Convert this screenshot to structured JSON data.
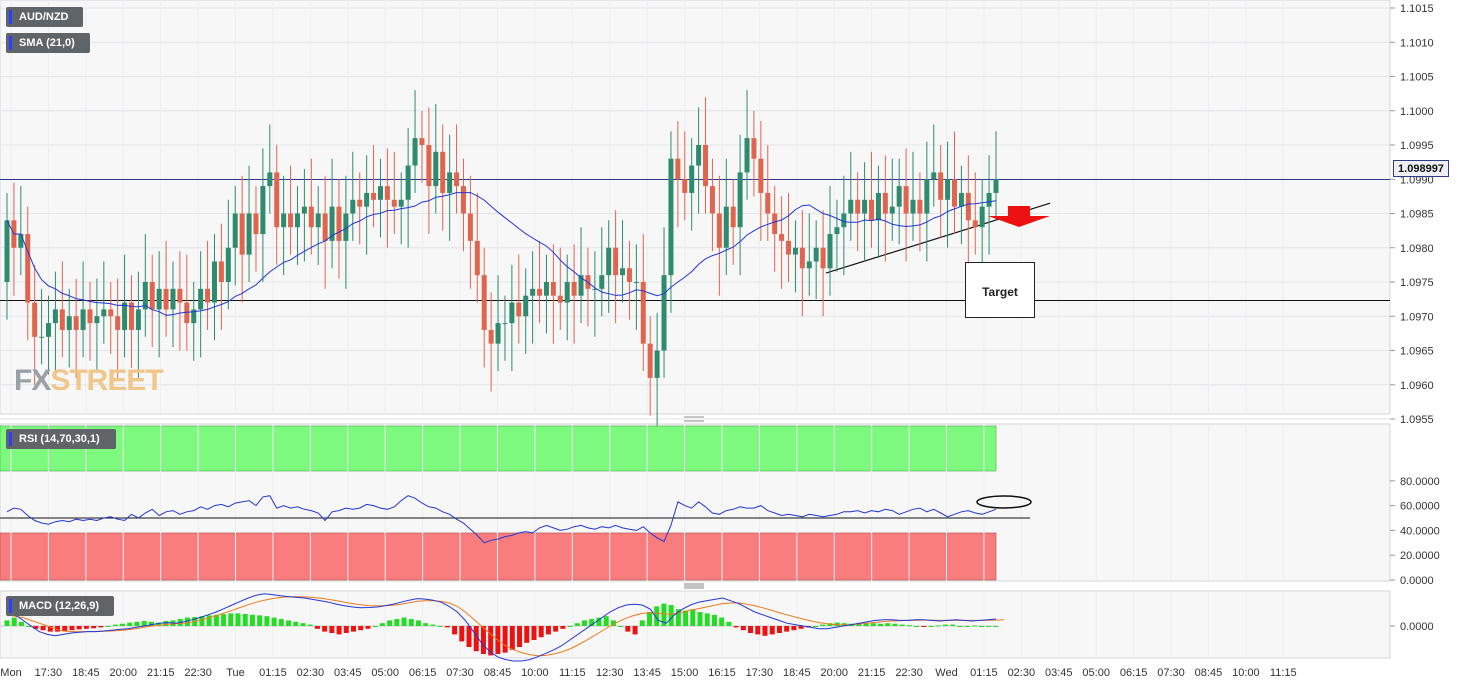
{
  "labels": {
    "symbol": "AUD/NZD",
    "sma": "SMA (21,0)",
    "rsi": "RSI (14,70,30,1)",
    "macd": "MACD (12,26,9)",
    "target": "Target",
    "last_price": "1.098997",
    "watermark_a": "FX",
    "watermark_b": "STREET"
  },
  "x_axis": {
    "ticks": [
      "Mon",
      "17:30",
      "18:45",
      "20:00",
      "21:15",
      "22:30",
      "Tue",
      "01:15",
      "02:30",
      "03:45",
      "05:00",
      "06:15",
      "07:30",
      "08:45",
      "10:00",
      "11:15",
      "12:30",
      "13:45",
      "15:00",
      "16:15",
      "17:30",
      "18:45",
      "20:00",
      "21:15",
      "22:30",
      "Wed",
      "01:15",
      "02:30",
      "03:45",
      "05:00",
      "06:15",
      "07:30",
      "08:45",
      "10:00",
      "11:15"
    ]
  },
  "chart_data": {
    "type": "candlestick",
    "price_axis": {
      "ticks": [
        "1.1015",
        "1.1010",
        "1.1005",
        "1.1000",
        "1.0995",
        "1.0990",
        "1.0985",
        "1.0980",
        "1.0975",
        "1.0970",
        "1.0965",
        "1.0960",
        "1.0955"
      ],
      "ylim": [
        1.095,
        1.1016
      ]
    },
    "last_price": 1.098997,
    "support_level": 1.09723,
    "trendline": {
      "from": 1.09763,
      "to": 1.09865
    },
    "candles": {
      "open": [
        1.0975,
        1.0984,
        1.098,
        1.0982,
        1.0972,
        1.0967,
        1.0967,
        1.0969,
        1.0971,
        1.0968,
        1.097,
        1.0968,
        1.0971,
        1.0969,
        1.097,
        1.0971,
        1.097,
        1.0968,
        1.0972,
        1.0968,
        1.0971,
        1.0975,
        1.0971,
        1.0974,
        1.0971,
        1.0974,
        1.0972,
        1.0969,
        1.0971,
        1.0974,
        1.0972,
        1.0978,
        1.0975,
        1.098,
        1.0985,
        1.0979,
        1.0985,
        1.0982,
        1.0989,
        1.0991,
        1.0983,
        1.0985,
        1.0983,
        1.0985,
        1.0986,
        1.0983,
        1.0985,
        1.0981,
        1.0986,
        1.0981,
        1.0985,
        1.0987,
        1.0986,
        1.0988,
        1.0987,
        1.0989,
        1.0987,
        1.0986,
        1.0987,
        1.0992,
        1.0996,
        1.0995,
        1.0989,
        1.0994,
        1.0988,
        1.0991,
        1.0989,
        1.0985,
        1.0981,
        1.0976,
        1.0968,
        1.0966,
        1.0969,
        1.0969,
        1.0972,
        1.097,
        1.0973,
        1.0974,
        1.0973,
        1.0975,
        1.0973,
        1.0972,
        1.0975,
        1.0973,
        1.0976,
        1.0974,
        1.0974,
        1.0976,
        1.098,
        1.0976,
        1.0977,
        1.0975,
        1.0975,
        1.0966,
        1.0961,
        1.0965,
        1.0976,
        1.0993,
        1.099,
        1.0988,
        1.0992,
        1.0995,
        1.0989,
        1.0985,
        1.098,
        1.0986,
        1.0983,
        1.0991,
        1.0996,
        1.0993,
        1.0988,
        1.0985,
        1.0982,
        1.0981,
        1.0979,
        1.098,
        1.0977,
        1.0978,
        1.098,
        1.0977,
        1.0982,
        1.0983,
        1.0985,
        1.0987,
        1.0985,
        1.0987,
        1.0984,
        1.0988,
        1.0985,
        1.0986,
        1.0989,
        1.0985,
        1.0987,
        1.0985,
        1.099,
        1.0991,
        1.0987,
        1.099,
        1.0986,
        1.0988,
        1.0984,
        1.0983,
        1.0986,
        1.0988
      ],
      "close": [
        1.0984,
        1.098,
        1.0982,
        1.0972,
        1.0967,
        1.0967,
        1.0969,
        1.0971,
        1.0968,
        1.097,
        1.0968,
        1.0971,
        1.0969,
        1.097,
        1.0971,
        1.097,
        1.0968,
        1.0972,
        1.0968,
        1.0971,
        1.0975,
        1.0971,
        1.0974,
        1.0971,
        1.0974,
        1.0972,
        1.0969,
        1.0971,
        1.0974,
        1.0972,
        1.0978,
        1.0975,
        1.098,
        1.0985,
        1.0979,
        1.0985,
        1.0982,
        1.0989,
        1.0991,
        1.0983,
        1.0985,
        1.0983,
        1.0985,
        1.0986,
        1.0983,
        1.0985,
        1.0981,
        1.0986,
        1.0981,
        1.0985,
        1.0987,
        1.0986,
        1.0988,
        1.0987,
        1.0989,
        1.0987,
        1.0986,
        1.0987,
        1.0992,
        1.0996,
        1.0995,
        1.0989,
        1.0994,
        1.0988,
        1.0991,
        1.0989,
        1.0985,
        1.0981,
        1.0976,
        1.0968,
        1.0966,
        1.0969,
        1.0969,
        1.0972,
        1.097,
        1.0973,
        1.0974,
        1.0973,
        1.0975,
        1.0973,
        1.0972,
        1.0975,
        1.0973,
        1.0976,
        1.0974,
        1.0974,
        1.0976,
        1.098,
        1.0976,
        1.0977,
        1.0975,
        1.0975,
        1.0966,
        1.0961,
        1.0965,
        1.0976,
        1.0993,
        1.099,
        1.0988,
        1.0992,
        1.0995,
        1.0989,
        1.0985,
        1.098,
        1.0986,
        1.0983,
        1.0991,
        1.0996,
        1.0993,
        1.0988,
        1.0985,
        1.0982,
        1.0981,
        1.0979,
        1.098,
        1.0977,
        1.0978,
        1.098,
        1.0977,
        1.0982,
        1.0983,
        1.0985,
        1.0987,
        1.0985,
        1.0987,
        1.0984,
        1.0988,
        1.0985,
        1.0986,
        1.0989,
        1.0985,
        1.0987,
        1.0985,
        1.099,
        1.0991,
        1.0987,
        1.099,
        1.0986,
        1.0988,
        1.0984,
        1.0983,
        1.0986,
        1.0988,
        1.099
      ]
    },
    "rsi": {
      "ticks": [
        "80.0000",
        "60.0000",
        "40.0000",
        "20.0000",
        "0.0000"
      ],
      "overbought": 70,
      "oversold": 30,
      "mid": 50,
      "values": [
        55,
        58,
        57,
        52,
        48,
        46,
        45,
        47,
        48,
        47,
        49,
        48,
        49,
        48,
        50,
        51,
        49,
        48,
        53,
        50,
        54,
        57,
        52,
        55,
        56,
        53,
        55,
        56,
        59,
        57,
        60,
        61,
        59,
        62,
        63,
        64,
        60,
        67,
        68,
        58,
        60,
        58,
        59,
        57,
        56,
        54,
        48,
        55,
        56,
        58,
        57,
        58,
        61,
        60,
        58,
        57,
        59,
        64,
        68,
        66,
        62,
        59,
        58,
        55,
        53,
        49,
        46,
        41,
        36,
        30,
        32,
        33,
        35,
        36,
        38,
        39,
        38,
        42,
        44,
        42,
        40,
        41,
        43,
        44,
        42,
        41,
        43,
        42,
        44,
        42,
        41,
        40,
        43,
        38,
        34,
        31,
        44,
        63,
        60,
        58,
        63,
        59,
        54,
        53,
        56,
        57,
        59,
        58,
        58,
        60,
        56,
        54,
        52,
        53,
        52,
        51,
        53,
        52,
        51,
        52,
        53,
        55,
        55,
        56,
        54,
        56,
        55,
        57,
        56,
        53,
        55,
        57,
        58,
        55,
        57,
        54,
        51,
        53,
        55,
        56,
        54,
        53,
        55,
        57
      ]
    },
    "macd": {
      "zero": "0.0000",
      "hist": [
        0.2,
        0.3,
        0.15,
        0.0,
        -0.1,
        -0.15,
        -0.2,
        -0.2,
        -0.18,
        -0.15,
        -0.12,
        -0.1,
        -0.08,
        -0.05,
        0.0,
        0.05,
        0.08,
        0.12,
        0.15,
        0.18,
        0.15,
        0.12,
        0.18,
        0.2,
        0.25,
        0.3,
        0.32,
        0.35,
        0.38,
        0.4,
        0.42,
        0.45,
        0.45,
        0.43,
        0.4,
        0.38,
        0.35,
        0.3,
        0.25,
        0.2,
        0.15,
        0.1,
        0.05,
        -0.1,
        -0.2,
        -0.25,
        -0.3,
        -0.25,
        -0.2,
        -0.15,
        -0.1,
        0.0,
        0.1,
        0.2,
        0.25,
        0.3,
        0.25,
        0.2,
        0.1,
        0.05,
        0.0,
        -0.05,
        -0.3,
        -0.55,
        -0.75,
        -0.9,
        -1.0,
        -1.05,
        -1.0,
        -0.95,
        -0.85,
        -0.75,
        -0.6,
        -0.5,
        -0.4,
        -0.3,
        -0.2,
        -0.1,
        0.0,
        0.1,
        0.2,
        0.25,
        0.3,
        0.35,
        0.2,
        0.0,
        -0.2,
        -0.3,
        0.2,
        0.5,
        0.7,
        0.8,
        0.75,
        0.6,
        0.55,
        0.6,
        0.5,
        0.45,
        0.4,
        0.3,
        0.15,
        -0.05,
        -0.15,
        -0.25,
        -0.3,
        -0.35,
        -0.3,
        -0.25,
        -0.2,
        -0.15,
        -0.1,
        -0.05,
        0.0,
        0.05,
        0.1,
        0.12,
        0.1,
        0.08,
        0.1,
        0.12,
        0.1,
        0.08,
        0.1,
        0.08,
        0.05,
        0.03,
        0.0,
        -0.02,
        0.0,
        0.02,
        0.05,
        0.05,
        0.0,
        0.0,
        0.02,
        0.0,
        0.0,
        0.0
      ],
      "macd": [
        0.6,
        0.4,
        0.2,
        0.0,
        -0.2,
        -0.3,
        -0.35,
        -0.3,
        -0.25,
        -0.22,
        -0.2,
        -0.2,
        -0.18,
        -0.15,
        -0.12,
        -0.1,
        -0.05,
        0.0,
        0.05,
        0.1,
        0.12,
        0.1,
        0.15,
        0.22,
        0.3,
        0.4,
        0.5,
        0.62,
        0.75,
        0.88,
        1.0,
        1.1,
        1.15,
        1.12,
        1.08,
        1.05,
        1.02,
        1.0,
        0.95,
        0.9,
        0.85,
        0.78,
        0.72,
        0.68,
        0.65,
        0.66,
        0.68,
        0.72,
        0.78,
        0.85,
        0.92,
        0.98,
        0.96,
        0.92,
        0.85,
        0.7,
        0.5,
        0.2,
        -0.2,
        -0.6,
        -0.9,
        -1.1,
        -1.2,
        -1.25,
        -1.25,
        -1.2,
        -1.1,
        -0.98,
        -0.85,
        -0.7,
        -0.5,
        -0.3,
        -0.1,
        0.1,
        0.3,
        0.5,
        0.65,
        0.75,
        0.78,
        0.75,
        0.6,
        0.2,
        0.1,
        0.4,
        0.6,
        0.75,
        0.85,
        0.9,
        0.95,
        1.0,
        0.9,
        0.8,
        0.65,
        0.5,
        0.4,
        0.3,
        0.2,
        0.1,
        0.05,
        0.0,
        -0.05,
        -0.1,
        -0.1,
        -0.05,
        0.0,
        0.05,
        0.1,
        0.15,
        0.2,
        0.22,
        0.22,
        0.2,
        0.2,
        0.22,
        0.22,
        0.2,
        0.18,
        0.2,
        0.22,
        0.2,
        0.18,
        0.2,
        0.22,
        0.25
      ],
      "signal": [
        0.4,
        0.35,
        0.3,
        0.2,
        0.1,
        0.0,
        -0.1,
        -0.18,
        -0.2,
        -0.2,
        -0.2,
        -0.2,
        -0.19,
        -0.18,
        -0.16,
        -0.14,
        -0.1,
        -0.05,
        0.0,
        0.03,
        0.06,
        0.08,
        0.1,
        0.14,
        0.2,
        0.28,
        0.36,
        0.46,
        0.56,
        0.66,
        0.76,
        0.85,
        0.92,
        0.98,
        1.02,
        1.04,
        1.05,
        1.04,
        1.02,
        0.99,
        0.95,
        0.9,
        0.85,
        0.8,
        0.76,
        0.73,
        0.72,
        0.72,
        0.74,
        0.78,
        0.83,
        0.88,
        0.9,
        0.9,
        0.88,
        0.82,
        0.7,
        0.5,
        0.25,
        0.0,
        -0.25,
        -0.5,
        -0.7,
        -0.85,
        -0.95,
        -1.02,
        -1.06,
        -1.05,
        -1.0,
        -0.93,
        -0.82,
        -0.68,
        -0.52,
        -0.35,
        -0.18,
        0.0,
        0.15,
        0.28,
        0.38,
        0.45,
        0.48,
        0.45,
        0.42,
        0.44,
        0.5,
        0.56,
        0.62,
        0.68,
        0.74,
        0.8,
        0.82,
        0.82,
        0.78,
        0.72,
        0.65,
        0.57,
        0.48,
        0.4,
        0.32,
        0.25,
        0.18,
        0.12,
        0.08,
        0.05,
        0.04,
        0.05,
        0.07,
        0.1,
        0.13,
        0.16,
        0.18,
        0.19,
        0.2,
        0.2,
        0.21,
        0.21,
        0.2,
        0.2,
        0.2,
        0.2,
        0.2,
        0.2,
        0.2,
        0.21,
        0.22
      ]
    }
  }
}
